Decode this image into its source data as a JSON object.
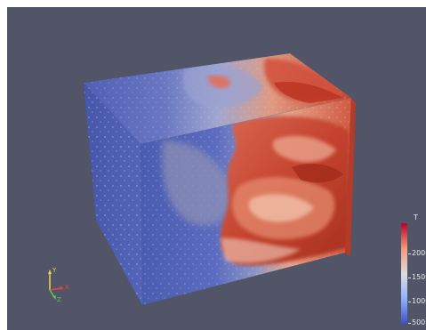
{
  "viewport": {
    "background_color": "#525468"
  },
  "colorbar": {
    "title": "T",
    "tick_labels": [
      "2000",
      "1500",
      "1000",
      "500"
    ],
    "colormap": [
      "#3b4cc0",
      "#8db0fe",
      "#dddddd",
      "#f49a7b",
      "#b40426"
    ]
  },
  "orientation_axes": {
    "x_label": "X",
    "y_label": "Y",
    "z_label": "Z",
    "x_color": "#e0483a",
    "y_color": "#e8d84a",
    "z_color": "#5cc85c"
  }
}
